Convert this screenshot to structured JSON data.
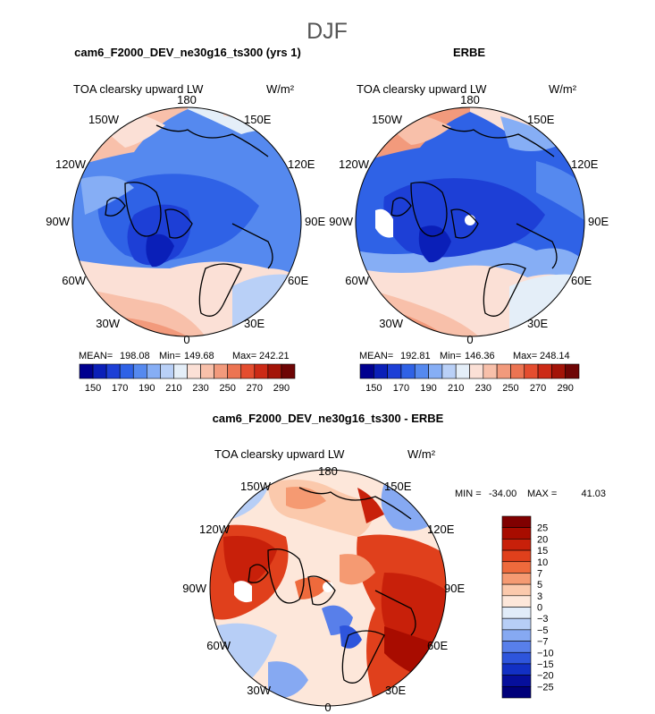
{
  "chart_data": {
    "type": "heatmap",
    "season_title": "DJF",
    "panels": [
      {
        "id": "model",
        "title": "cam6_F2000_DEV_ne30g16_ts300 (yrs 1)",
        "variable": "TOA clearsky upward LW",
        "units": "W/m²",
        "stats": {
          "mean_label": "MEAN=",
          "mean": "198.08",
          "min_label": "Min=",
          "min": "149.68",
          "max_label": "Max=",
          "max": "242.21"
        },
        "lon_labels": {
          "top": "180",
          "bottom": "0",
          "left": "90W",
          "right": "90E",
          "upper_left": "150W",
          "upper_left2": "120W",
          "lower_left": "60W",
          "lower_left2": "30W",
          "upper_right": "150E",
          "upper_right2": "120E",
          "lower_right": "60E",
          "lower_right2": "30E"
        },
        "colorbar_ticks": [
          "150",
          "170",
          "190",
          "210",
          "230",
          "250",
          "270",
          "290"
        ]
      },
      {
        "id": "obs",
        "title": "ERBE",
        "variable": "TOA clearsky upward LW",
        "units": "W/m²",
        "stats": {
          "mean_label": "MEAN=",
          "mean": "192.81",
          "min_label": "Min=",
          "min": "146.36",
          "max_label": "Max=",
          "max": "248.14"
        },
        "lon_labels": {
          "top": "180",
          "bottom": "0",
          "left": "90W",
          "right": "90E",
          "upper_left": "150W",
          "upper_left2": "120W",
          "lower_left": "60W",
          "lower_left2": "30W",
          "upper_right": "150E",
          "upper_right2": "120E",
          "lower_right": "60E",
          "lower_right2": "30E"
        },
        "colorbar_ticks": [
          "150",
          "170",
          "190",
          "210",
          "230",
          "250",
          "270",
          "290"
        ]
      },
      {
        "id": "diff",
        "title": "cam6_F2000_DEV_ne30g16_ts300 - ERBE",
        "variable": "TOA clearsky upward LW",
        "units": "W/m²",
        "stats": {
          "min_label": "MIN =",
          "min": "-34.00",
          "max_label": "MAX =",
          "max": "41.03"
        },
        "lon_labels": {
          "top": "180",
          "bottom": "0",
          "left": "90W",
          "right": "90E",
          "upper_left": "150W",
          "upper_left2": "120W",
          "lower_left": "60W",
          "lower_left2": "30W",
          "upper_right": "150E",
          "upper_right2": "120E",
          "lower_right": "60E",
          "lower_right2": "30E"
        },
        "colorbar_ticks": [
          "25",
          "20",
          "15",
          "10",
          "7",
          "5",
          "3",
          "0",
          "−3",
          "−5",
          "−7",
          "−10",
          "−15",
          "−20",
          "−25"
        ]
      }
    ],
    "abs_colors": [
      "#00008f",
      "#0a1fb8",
      "#1d3fd6",
      "#2f62e6",
      "#5589ef",
      "#86aef5",
      "#b9d0f7",
      "#e4eef8",
      "#fbe0d6",
      "#f8c0aa",
      "#f29a7c",
      "#ec7452",
      "#e44d2f",
      "#cc2a16",
      "#a31408",
      "#6e0505"
    ],
    "diff_colors": [
      "#800000",
      "#a80c00",
      "#c8200a",
      "#e0401c",
      "#ee6a3c",
      "#f59a72",
      "#fbc9ac",
      "#fde7da",
      "#e1ecf9",
      "#b7cef6",
      "#86a9f2",
      "#587fea",
      "#2e55dc",
      "#1230c4",
      "#060f9c",
      "#00007a"
    ]
  }
}
